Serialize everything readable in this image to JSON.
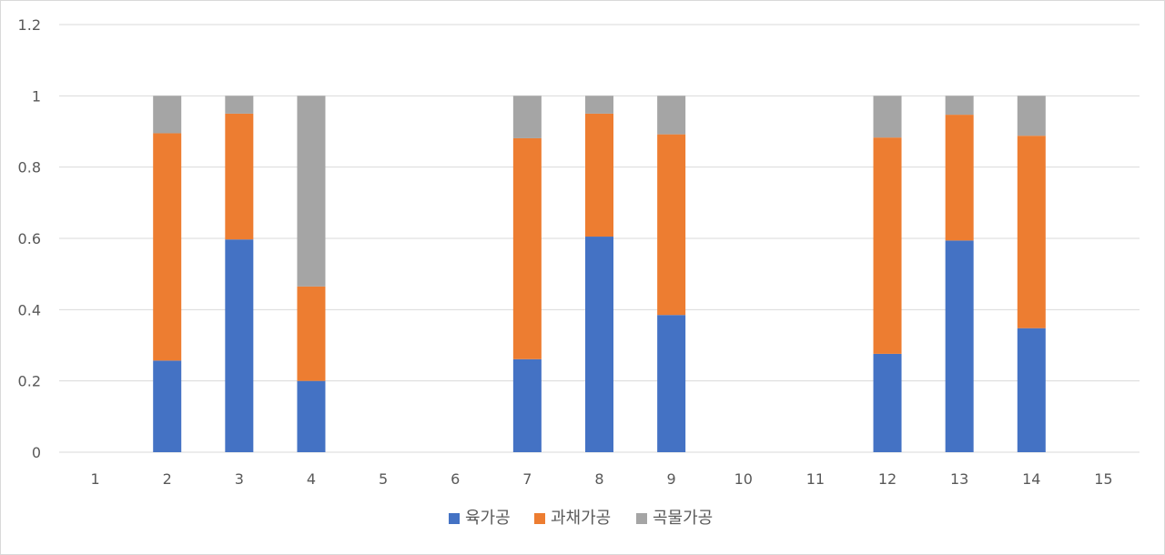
{
  "chart_data": {
    "type": "bar",
    "stacked": true,
    "categories": [
      "1",
      "2",
      "3",
      "4",
      "5",
      "6",
      "7",
      "8",
      "9",
      "10",
      "11",
      "12",
      "13",
      "14",
      "15"
    ],
    "series": [
      {
        "name": "육가공",
        "color": "#4472C4",
        "values": [
          0,
          0.257,
          0.597,
          0.2,
          0,
          0,
          0.261,
          0.605,
          0.385,
          0,
          0,
          0.276,
          0.594,
          0.348,
          0
        ]
      },
      {
        "name": "과채가공",
        "color": "#ED7D31",
        "values": [
          0,
          0.638,
          0.353,
          0.265,
          0,
          0,
          0.62,
          0.345,
          0.507,
          0,
          0,
          0.607,
          0.353,
          0.54,
          0
        ]
      },
      {
        "name": "곡물가공",
        "color": "#A5A5A5",
        "values": [
          0,
          0.105,
          0.05,
          0.535,
          0,
          0,
          0.119,
          0.05,
          0.108,
          0,
          0,
          0.117,
          0.053,
          0.112,
          0
        ]
      }
    ],
    "y_ticks": [
      "0",
      "0.2",
      "0.4",
      "0.6",
      "0.8",
      "1",
      "1.2"
    ],
    "ylim": [
      0,
      1.2
    ],
    "grid": true,
    "legend_position": "bottom"
  }
}
